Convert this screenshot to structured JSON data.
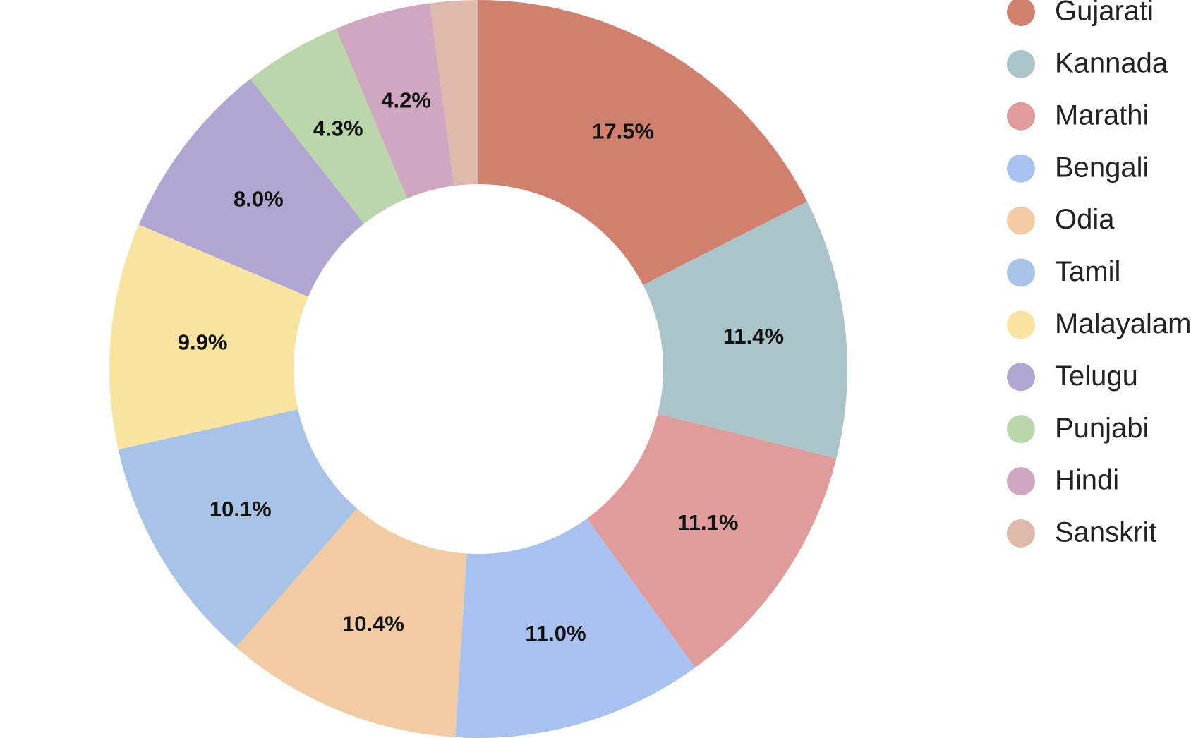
{
  "chart_data": {
    "type": "pie",
    "style": "donut",
    "legend": "right",
    "categories": [
      "Gujarati",
      "Kannada",
      "Marathi",
      "Bengali",
      "Odia",
      "Tamil",
      "Malayalam",
      "Telugu",
      "Punjabi",
      "Hindi",
      "Sanskrit"
    ],
    "values": [
      17.5,
      11.4,
      11.1,
      11.0,
      10.4,
      10.1,
      9.9,
      8.0,
      4.3,
      4.2,
      2.1
    ],
    "labels": [
      "17.5%",
      "11.4%",
      "11.1%",
      "11.0%",
      "10.4%",
      "10.1%",
      "9.9%",
      "8.0%",
      "4.3%",
      "4.2%",
      ""
    ],
    "colors": [
      "#d0806e",
      "#abc4c9",
      "#e09c9b",
      "#a9c1ee",
      "#f1cba4",
      "#a7c4e6",
      "#f9e3a1",
      "#b1a6d2",
      "#bad6aa",
      "#cfa7c0",
      "#e0b9ad"
    ]
  }
}
